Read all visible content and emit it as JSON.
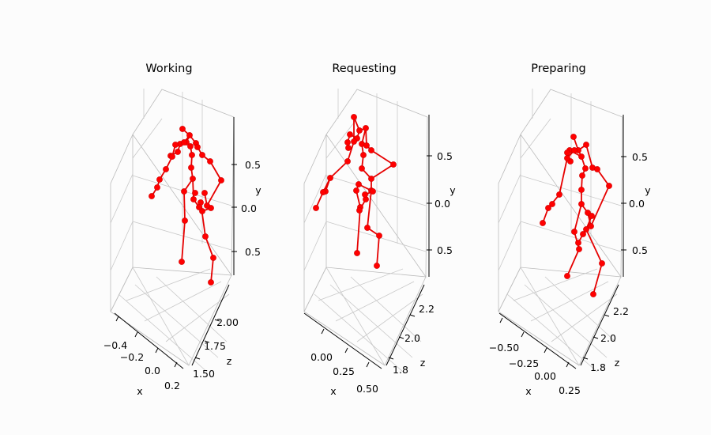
{
  "chart_data": [
    {
      "type": "scatter",
      "title": "Working",
      "xlabel": "x",
      "ylabel": "y",
      "zlabel": "z",
      "x_ticks": [
        "−0.4",
        "−0.2",
        "0.0",
        "0.2"
      ],
      "y_ticks": [
        "0.5",
        "0.0",
        "0.5"
      ],
      "z_ticks": [
        "1.50",
        "1.75",
        "2.00"
      ],
      "grid": true,
      "joints": [
        [
          231,
          163
        ],
        [
          240,
          171
        ],
        [
          248,
          181
        ],
        [
          236,
          180
        ],
        [
          228,
          182
        ],
        [
          225,
          192
        ],
        [
          216,
          197
        ],
        [
          241,
          185
        ],
        [
          243,
          196
        ],
        [
          242,
          212
        ],
        [
          244,
          226
        ],
        [
          233,
          180
        ],
        [
          222,
          183
        ],
        [
          218,
          198
        ],
        [
          210,
          214
        ],
        [
          202,
          227
        ],
        [
          199,
          237
        ],
        [
          192,
          248
        ],
        [
          250,
          186
        ],
        [
          256,
          196
        ],
        [
          266,
          204
        ],
        [
          280,
          228
        ],
        [
          247,
          244
        ],
        [
          254,
          256
        ],
        [
          256,
          267
        ],
        [
          267,
          263
        ],
        [
          262,
          260
        ],
        [
          259,
          244
        ],
        [
          233,
          242
        ],
        [
          234,
          279
        ],
        [
          230,
          331
        ],
        [
          260,
          299
        ],
        [
          270,
          326
        ],
        [
          267,
          357
        ],
        [
          245,
          252
        ],
        [
          252,
          262
        ]
      ],
      "bones": [
        [
          0,
          1
        ],
        [
          1,
          2
        ],
        [
          1,
          3
        ],
        [
          3,
          4
        ],
        [
          4,
          5
        ],
        [
          5,
          6
        ],
        [
          3,
          7
        ],
        [
          7,
          8
        ],
        [
          8,
          9
        ],
        [
          9,
          10
        ],
        [
          1,
          11
        ],
        [
          11,
          12
        ],
        [
          12,
          13
        ],
        [
          13,
          14
        ],
        [
          14,
          15
        ],
        [
          15,
          16
        ],
        [
          16,
          17
        ],
        [
          2,
          18
        ],
        [
          18,
          19
        ],
        [
          19,
          20
        ],
        [
          20,
          21
        ],
        [
          21,
          26
        ],
        [
          10,
          34
        ],
        [
          34,
          35
        ],
        [
          35,
          23
        ],
        [
          23,
          24
        ],
        [
          24,
          25
        ],
        [
          25,
          26
        ],
        [
          26,
          27
        ],
        [
          10,
          28
        ],
        [
          28,
          29
        ],
        [
          29,
          30
        ],
        [
          23,
          31
        ],
        [
          31,
          32
        ],
        [
          32,
          33
        ]
      ]
    },
    {
      "type": "scatter",
      "title": "Requesting",
      "xlabel": "x",
      "ylabel": "y",
      "zlabel": "z",
      "x_ticks": [
        "0.00",
        "0.25",
        "0.50"
      ],
      "y_ticks": [
        "0.5",
        "0.0",
        "0.5"
      ],
      "z_ticks": [
        "1.8",
        "2.0",
        "2.2"
      ],
      "grid": true,
      "joints": [
        [
          448,
          148
        ],
        [
          455,
          165
        ],
        [
          463,
          162
        ],
        [
          452,
          175
        ],
        [
          443,
          170
        ],
        [
          440,
          180
        ],
        [
          441,
          187
        ],
        [
          458,
          182
        ],
        [
          460,
          196
        ],
        [
          458,
          213
        ],
        [
          464,
          184
        ],
        [
          470,
          190
        ],
        [
          498,
          208
        ],
        [
          470,
          226
        ],
        [
          470,
          241
        ],
        [
          454,
          233
        ],
        [
          451,
          241
        ],
        [
          456,
          262
        ],
        [
          455,
          266
        ],
        [
          463,
          252
        ],
        [
          465,
          288
        ],
        [
          480,
          298
        ],
        [
          472,
          242
        ],
        [
          477,
          336
        ],
        [
          452,
          320
        ],
        [
          462,
          246
        ],
        [
          418,
          225
        ],
        [
          412,
          242
        ],
        [
          409,
          243
        ],
        [
          400,
          263
        ],
        [
          448,
          179
        ],
        [
          440,
          204
        ]
      ],
      "bones": [
        [
          0,
          1
        ],
        [
          1,
          2
        ],
        [
          1,
          3
        ],
        [
          3,
          4
        ],
        [
          4,
          5
        ],
        [
          5,
          6
        ],
        [
          2,
          7
        ],
        [
          7,
          8
        ],
        [
          8,
          9
        ],
        [
          9,
          13
        ],
        [
          2,
          10
        ],
        [
          10,
          11
        ],
        [
          11,
          12
        ],
        [
          12,
          13
        ],
        [
          13,
          14
        ],
        [
          14,
          22
        ],
        [
          22,
          25
        ],
        [
          25,
          19
        ],
        [
          19,
          18
        ],
        [
          18,
          17
        ],
        [
          17,
          16
        ],
        [
          16,
          15
        ],
        [
          15,
          14
        ],
        [
          14,
          20
        ],
        [
          20,
          21
        ],
        [
          21,
          23
        ],
        [
          17,
          24
        ],
        [
          0,
          30
        ],
        [
          30,
          31
        ],
        [
          31,
          26
        ],
        [
          26,
          27
        ],
        [
          26,
          28
        ],
        [
          28,
          29
        ]
      ]
    },
    {
      "type": "scatter",
      "title": "Preparing",
      "xlabel": "x",
      "ylabel": "y",
      "zlabel": "z",
      "x_ticks": [
        "−0.50",
        "−0.25",
        "0.00",
        "0.25"
      ],
      "y_ticks": [
        "0.5",
        "0.0",
        "0.5"
      ],
      "z_ticks": [
        "1.8",
        "2.0",
        "2.2"
      ],
      "grid": true,
      "joints": [
        [
          726,
          173
        ],
        [
          732,
          190
        ],
        [
          742,
          183
        ],
        [
          736,
          198
        ],
        [
          721,
          190
        ],
        [
          718,
          193
        ],
        [
          722,
          204
        ],
        [
          741,
          213
        ],
        [
          737,
          222
        ],
        [
          736,
          240
        ],
        [
          736,
          258
        ],
        [
          727,
          190
        ],
        [
          718,
          200
        ],
        [
          708,
          246
        ],
        [
          694,
          263
        ],
        [
          687,
          282
        ],
        [
          750,
          212
        ],
        [
          756,
          214
        ],
        [
          771,
          235
        ],
        [
          748,
          286
        ],
        [
          727,
          293
        ],
        [
          733,
          315
        ],
        [
          718,
          349
        ],
        [
          742,
          290
        ],
        [
          762,
          333
        ],
        [
          751,
          372
        ],
        [
          744,
          269
        ],
        [
          749,
          273
        ],
        [
          732,
          307
        ],
        [
          699,
          258
        ],
        [
          738,
          296
        ]
      ],
      "bones": [
        [
          0,
          1
        ],
        [
          1,
          2
        ],
        [
          1,
          3
        ],
        [
          3,
          4
        ],
        [
          4,
          5
        ],
        [
          5,
          6
        ],
        [
          1,
          11
        ],
        [
          11,
          12
        ],
        [
          12,
          13
        ],
        [
          13,
          14
        ],
        [
          14,
          15
        ],
        [
          2,
          16
        ],
        [
          16,
          17
        ],
        [
          17,
          18
        ],
        [
          18,
          19
        ],
        [
          19,
          26
        ],
        [
          26,
          27
        ],
        [
          27,
          23
        ],
        [
          23,
          24
        ],
        [
          24,
          25
        ],
        [
          3,
          7
        ],
        [
          7,
          8
        ],
        [
          8,
          9
        ],
        [
          9,
          10
        ],
        [
          10,
          20
        ],
        [
          20,
          21
        ],
        [
          21,
          22
        ],
        [
          10,
          26
        ],
        [
          14,
          29
        ],
        [
          23,
          30
        ],
        [
          30,
          28
        ]
      ]
    }
  ]
}
